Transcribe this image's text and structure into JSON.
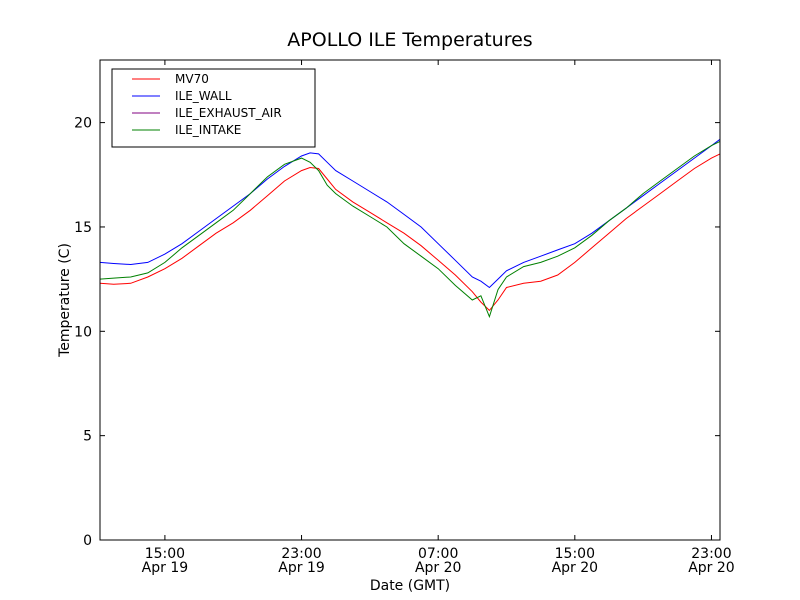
{
  "chart_data": {
    "type": "line",
    "title": "APOLLO ILE Temperatures",
    "xlabel": "Date (GMT)",
    "ylabel": "Temperature (C)",
    "xlim": [
      11.2,
      47.5
    ],
    "ylim": [
      0,
      23
    ],
    "x_unit": "hours since 2015-04-19 00:00 GMT",
    "yticks": [
      0,
      5,
      10,
      15,
      20
    ],
    "xticks": [
      {
        "value": 15,
        "line1": "15:00",
        "line2": "Apr 19"
      },
      {
        "value": 23,
        "line1": "23:00",
        "line2": "Apr 19"
      },
      {
        "value": 31,
        "line1": "07:00",
        "line2": "Apr 20"
      },
      {
        "value": 39,
        "line1": "15:00",
        "line2": "Apr 20"
      },
      {
        "value": 47,
        "line1": "23:00",
        "line2": "Apr 20"
      }
    ],
    "legend_position": "top-left",
    "series": [
      {
        "name": "MV70",
        "color": "#ff0000",
        "x": [
          11.2,
          12,
          13,
          14,
          15,
          16,
          17,
          18,
          19,
          20,
          21,
          22,
          23,
          23.5,
          24,
          24.5,
          25,
          26,
          27,
          28,
          29,
          30,
          31,
          32,
          33,
          33.5,
          34,
          34.5,
          35,
          36,
          37,
          38,
          39,
          40,
          41,
          42,
          43,
          44,
          45,
          46,
          47,
          47.5
        ],
        "y": [
          12.3,
          12.25,
          12.3,
          12.6,
          13.0,
          13.5,
          14.1,
          14.7,
          15.2,
          15.8,
          16.5,
          17.2,
          17.7,
          17.85,
          17.8,
          17.3,
          16.8,
          16.2,
          15.7,
          15.2,
          14.7,
          14.1,
          13.4,
          12.7,
          11.9,
          11.4,
          11.0,
          11.5,
          12.1,
          12.3,
          12.4,
          12.7,
          13.3,
          14.0,
          14.7,
          15.4,
          16.0,
          16.6,
          17.2,
          17.8,
          18.3,
          18.5
        ]
      },
      {
        "name": "ILE_WALL",
        "color": "#0000ff",
        "x": [
          11.2,
          12,
          13,
          14,
          15,
          16,
          17,
          18,
          19,
          20,
          21,
          22,
          23,
          23.5,
          24,
          24.5,
          25,
          26,
          27,
          28,
          29,
          30,
          31,
          32,
          33,
          33.5,
          34,
          34.5,
          35,
          36,
          37,
          38,
          39,
          40,
          41,
          42,
          43,
          44,
          45,
          46,
          47,
          47.5
        ],
        "y": [
          13.3,
          13.25,
          13.2,
          13.3,
          13.7,
          14.2,
          14.8,
          15.4,
          16.0,
          16.6,
          17.3,
          17.9,
          18.4,
          18.55,
          18.5,
          18.1,
          17.7,
          17.2,
          16.7,
          16.2,
          15.6,
          15.0,
          14.2,
          13.4,
          12.6,
          12.4,
          12.1,
          12.5,
          12.9,
          13.3,
          13.6,
          13.9,
          14.2,
          14.7,
          15.3,
          15.9,
          16.5,
          17.1,
          17.7,
          18.3,
          18.9,
          19.2
        ]
      },
      {
        "name": "ILE_EXHAUST_AIR",
        "color": "#800080",
        "x": [],
        "y": []
      },
      {
        "name": "ILE_INTAKE",
        "color": "#008000",
        "x": [
          11.2,
          12,
          13,
          14,
          15,
          16,
          17,
          18,
          19,
          20,
          21,
          22,
          23,
          23.5,
          24,
          24.5,
          25,
          26,
          27,
          28,
          29,
          30,
          31,
          32,
          33,
          33.5,
          34,
          34.5,
          35,
          36,
          37,
          38,
          39,
          40,
          41,
          42,
          43,
          44,
          45,
          46,
          47,
          47.5
        ],
        "y": [
          12.5,
          12.55,
          12.6,
          12.8,
          13.3,
          14.0,
          14.6,
          15.2,
          15.8,
          16.6,
          17.4,
          18.0,
          18.3,
          18.1,
          17.7,
          17.0,
          16.6,
          16.0,
          15.5,
          15.0,
          14.2,
          13.6,
          13.0,
          12.2,
          11.5,
          11.7,
          10.7,
          12.0,
          12.6,
          13.1,
          13.3,
          13.6,
          14.0,
          14.6,
          15.3,
          15.9,
          16.6,
          17.2,
          17.8,
          18.4,
          18.9,
          19.1
        ]
      }
    ]
  }
}
